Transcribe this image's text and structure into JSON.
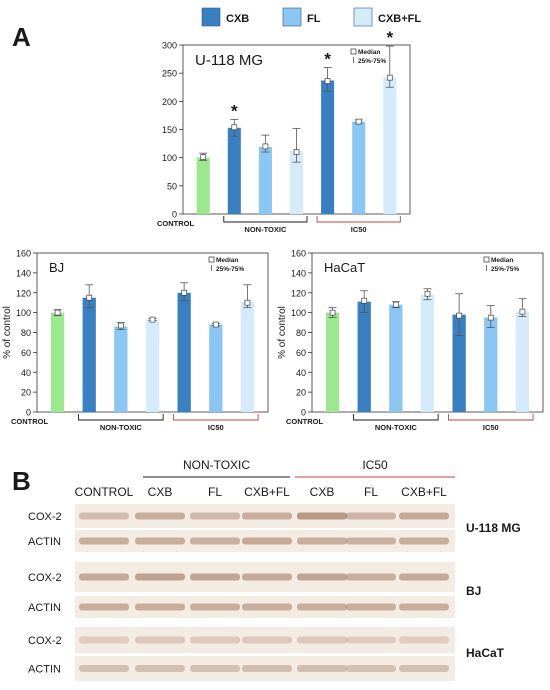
{
  "legend": [
    {
      "label": "CXB",
      "color": "#3a7fc0"
    },
    {
      "label": "FL",
      "color": "#8cc6f2"
    },
    {
      "label": "CXB+FL",
      "color": "#d6ebfa"
    }
  ],
  "panel_a_label": "A",
  "panel_b_label": "B",
  "control_color": "#9be88f",
  "ic50_color": "#c8423a",
  "key_median": "Median",
  "key_range": "25%-75%",
  "chart_data": [
    {
      "type": "bar",
      "id": "u118",
      "title": "U-118 MG",
      "ylabel": "",
      "ylim": [
        0,
        300
      ],
      "yticks": [
        0,
        50,
        100,
        150,
        200,
        250,
        300
      ],
      "categories": [
        "CONTROL",
        "CXB",
        "FL",
        "CXB+FL",
        "CXB",
        "FL",
        "CXB+FL"
      ],
      "groups": [
        {
          "label": "NON-TOXIC",
          "from": 1,
          "to": 3
        },
        {
          "label": "IC50",
          "from": 4,
          "to": 6
        }
      ],
      "values": [
        100,
        153,
        119,
        112,
        237,
        164,
        242
      ],
      "medians": [
        101,
        154,
        120,
        110,
        236,
        164,
        242
      ],
      "q_low": [
        95,
        138,
        110,
        92,
        218,
        161,
        225
      ],
      "q_high": [
        108,
        168,
        140,
        152,
        260,
        167,
        298
      ],
      "significant": [
        false,
        true,
        false,
        false,
        true,
        false,
        true
      ]
    },
    {
      "type": "bar",
      "id": "bj",
      "title": "BJ",
      "ylabel": "% of control",
      "ylim": [
        0,
        160
      ],
      "yticks": [
        0,
        20,
        40,
        60,
        80,
        100,
        120,
        140,
        160
      ],
      "categories": [
        "CONTROL",
        "CXB",
        "FL",
        "CXB+FL",
        "CXB",
        "FL",
        "CXB+FL"
      ],
      "groups": [
        {
          "label": "NON-TOXIC",
          "from": 1,
          "to": 3
        },
        {
          "label": "IC50",
          "from": 4,
          "to": 6
        }
      ],
      "values": [
        100,
        115,
        86,
        93,
        120,
        88,
        111
      ],
      "medians": [
        100,
        115,
        87,
        93,
        120,
        88,
        110
      ],
      "q_low": [
        97,
        105,
        83,
        92,
        112,
        87,
        105
      ],
      "q_high": [
        103,
        128,
        90,
        94,
        130,
        89,
        128
      ],
      "significant": [
        false,
        false,
        false,
        false,
        false,
        false,
        false
      ]
    },
    {
      "type": "bar",
      "id": "hacat",
      "title": "HaCaT",
      "ylabel": "% of control",
      "ylim": [
        0,
        160
      ],
      "yticks": [
        0,
        20,
        40,
        60,
        80,
        100,
        120,
        140,
        160
      ],
      "categories": [
        "CONTROL",
        "CXB",
        "FL",
        "CXB+FL",
        "CXB",
        "FL",
        "CXB+FL"
      ],
      "groups": [
        {
          "label": "NON-TOXIC",
          "from": 1,
          "to": 3
        },
        {
          "label": "IC50",
          "from": 4,
          "to": 6
        }
      ],
      "values": [
        100,
        111,
        108,
        118,
        98,
        95,
        101
      ],
      "medians": [
        100,
        112,
        108,
        119,
        97,
        95,
        101
      ],
      "q_low": [
        95,
        100,
        105,
        113,
        77,
        85,
        96
      ],
      "q_high": [
        105,
        122,
        111,
        124,
        119,
        107,
        114
      ],
      "significant": [
        false,
        false,
        false,
        false,
        false,
        false,
        false
      ]
    }
  ],
  "blot": {
    "header_groups": [
      {
        "label": "NON-TOXIC",
        "color": "#1a1a1a"
      },
      {
        "label": "IC50",
        "color": "#c8423a"
      }
    ],
    "lanes": [
      "CONTROL",
      "CXB",
      "FL",
      "CXB+FL",
      "CXB",
      "FL",
      "CXB+FL"
    ],
    "rows": [
      {
        "label": "COX-2",
        "intensity": [
          0.35,
          0.55,
          0.4,
          0.55,
          0.8,
          0.45,
          0.6
        ]
      },
      {
        "label": "ACTIN",
        "intensity": [
          0.55,
          0.55,
          0.5,
          0.6,
          0.55,
          0.5,
          0.55
        ]
      },
      {
        "label": "COX-2",
        "intensity": [
          0.6,
          0.7,
          0.65,
          0.6,
          0.65,
          0.55,
          0.6
        ]
      },
      {
        "label": "ACTIN",
        "intensity": [
          0.55,
          0.55,
          0.55,
          0.55,
          0.55,
          0.55,
          0.55
        ]
      },
      {
        "label": "COX-2",
        "intensity": [
          0.15,
          0.2,
          0.18,
          0.18,
          0.2,
          0.15,
          0.15
        ]
      },
      {
        "label": "ACTIN",
        "intensity": [
          0.3,
          0.3,
          0.3,
          0.35,
          0.35,
          0.3,
          0.3
        ]
      }
    ],
    "cell_lines": [
      "U-118 MG",
      "BJ",
      "HaCaT"
    ]
  }
}
